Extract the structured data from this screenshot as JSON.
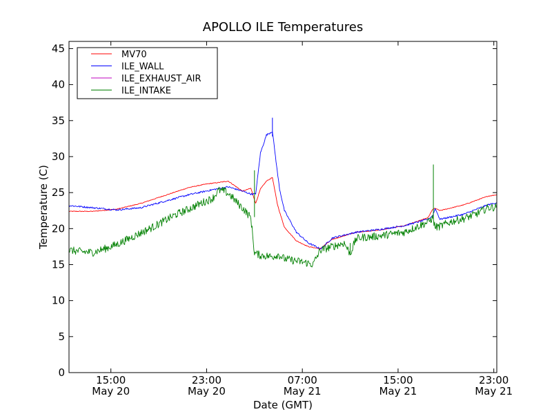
{
  "chart_data": {
    "type": "line",
    "title": "APOLLO ILE Temperatures",
    "xlabel": "Date (GMT)",
    "ylabel": "Temperature (C)",
    "x_unit": "hours since May 20 11:30 GMT",
    "xlim": [
      0,
      35.75
    ],
    "ylim": [
      0,
      46
    ],
    "y_ticks": [
      0,
      5,
      10,
      15,
      20,
      25,
      30,
      35,
      40,
      45
    ],
    "x_ticks": [
      {
        "x": 3.5,
        "time": "15:00",
        "date": "May 20"
      },
      {
        "x": 11.5,
        "time": "23:00",
        "date": "May 20"
      },
      {
        "x": 19.5,
        "time": "07:00",
        "date": "May 21"
      },
      {
        "x": 27.5,
        "time": "15:00",
        "date": "May 21"
      },
      {
        "x": 35.5,
        "time": "23:00",
        "date": "May 21"
      }
    ],
    "legend_position": "top-left",
    "series": [
      {
        "name": "MV70",
        "color": "#ff0000",
        "x": [
          0,
          2,
          4,
          6,
          8,
          10,
          11.5,
          12.5,
          13.3,
          14.5,
          15.2,
          15.6,
          16,
          16.5,
          17,
          17.4,
          17.6,
          18,
          19,
          20,
          21,
          21.2,
          22,
          24,
          26,
          28,
          30,
          30.4,
          30.6,
          31,
          33,
          35,
          35.75
        ],
        "y": [
          22.4,
          22.4,
          22.7,
          23.5,
          24.6,
          25.7,
          26.2,
          26.4,
          26.6,
          25.2,
          25.6,
          23.5,
          25.5,
          26.6,
          27.1,
          23.5,
          22.3,
          20.2,
          18.3,
          17.5,
          17.2,
          17.5,
          18.5,
          19.5,
          19.8,
          20.4,
          21.5,
          22.7,
          22.8,
          22.5,
          23.3,
          24.5,
          24.7
        ]
      },
      {
        "name": "ILE_WALL",
        "color": "#0000ff",
        "x": [
          0,
          2,
          4,
          6,
          8,
          10,
          12,
          13.3,
          14.5,
          15.2,
          15.6,
          16,
          16.5,
          17,
          17.4,
          17.6,
          18,
          19,
          20,
          21,
          21.2,
          22,
          24,
          26,
          28,
          30,
          30.4,
          30.6,
          31,
          33,
          35,
          35.75
        ],
        "y": [
          23.2,
          22.9,
          22.6,
          22.9,
          23.8,
          24.7,
          25.4,
          25.8,
          25.2,
          24.8,
          24.8,
          30.5,
          33.0,
          33.5,
          28.0,
          25.5,
          22.5,
          19.5,
          18.0,
          17.2,
          17.4,
          18.7,
          19.5,
          19.9,
          20.4,
          21.3,
          21.8,
          22.8,
          21.3,
          22.0,
          23.3,
          23.6
        ]
      },
      {
        "name": "ILE_EXHAUST_AIR",
        "color": "#bf00bf",
        "x": [],
        "y": []
      },
      {
        "name": "ILE_INTAKE",
        "color": "#008000",
        "x": [
          0,
          1,
          2,
          3,
          4,
          5,
          6,
          7,
          8,
          9,
          10,
          11,
          12,
          12.5,
          13,
          13.5,
          14,
          14.6,
          15.2,
          15.5,
          16,
          17,
          17.5,
          18,
          19,
          20,
          20.4,
          20.5,
          21,
          22,
          23,
          23.5,
          24,
          24.6,
          25,
          26,
          28,
          30,
          30.4,
          30.6,
          31,
          32,
          33,
          34,
          35,
          35.75
        ],
        "y": [
          17.0,
          16.8,
          16.7,
          17.2,
          17.8,
          18.6,
          19.4,
          20.2,
          21.1,
          22.0,
          22.7,
          23.5,
          24.2,
          25.3,
          25.2,
          24.6,
          23.7,
          22.7,
          21.5,
          16.6,
          16.3,
          16.1,
          16.4,
          15.8,
          15.5,
          15.2,
          15.0,
          15.4,
          17.0,
          17.5,
          18.0,
          16.5,
          18.6,
          18.8,
          18.8,
          19.0,
          19.5,
          20.9,
          21.5,
          20.2,
          20.3,
          21.0,
          21.4,
          22.0,
          22.9,
          23.0
        ]
      }
    ],
    "spikes": [
      {
        "series": "ILE_INTAKE",
        "x": 15.5,
        "y_from": 21.6,
        "y_to": 28.1
      },
      {
        "series": "ILE_INTAKE",
        "x": 30.45,
        "y_from": 21.5,
        "y_to": 28.9
      },
      {
        "series": "ILE_WALL",
        "x": 17.0,
        "y_from": 32.8,
        "y_to": 35.4
      },
      {
        "series": "ILE_INTAKE",
        "x": 23.5,
        "y_from": 16.3,
        "y_to": 18.0
      }
    ]
  }
}
